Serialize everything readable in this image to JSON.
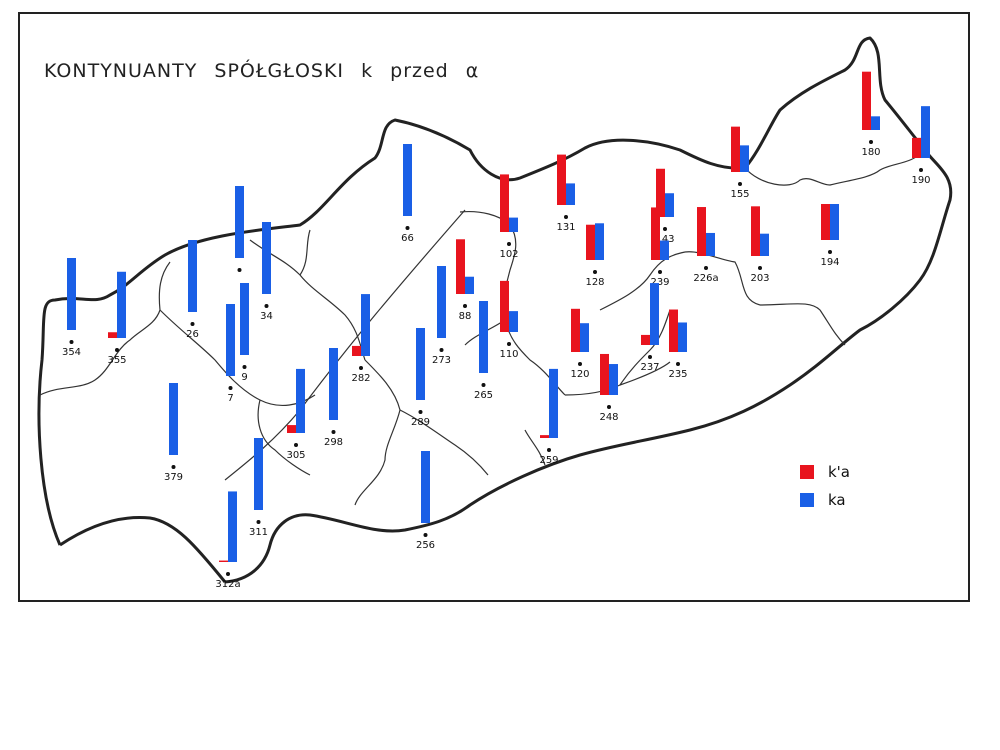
{
  "map": {
    "title": [
      "KONTYNUANTY",
      "SPÓŁGŁOSKI",
      "k",
      "przed",
      "α"
    ],
    "legend": [
      {
        "key": "palatal",
        "label": "k'a",
        "color": "#e8141e"
      },
      {
        "key": "velar",
        "label": "ka",
        "color": "#1a5fe6"
      }
    ],
    "colors": {
      "red": "#e8141e",
      "blue": "#1a5fe6",
      "outline": "#222222"
    }
  },
  "points": [
    {
      "label": "354",
      "red": 0,
      "blue": 100
    },
    {
      "label": "355",
      "red": 8,
      "blue": 92
    },
    {
      "label": "26",
      "red": 0,
      "blue": 100
    },
    {
      "label": "",
      "red": 0,
      "blue": 100
    },
    {
      "label": "34",
      "red": 0,
      "blue": 100
    },
    {
      "label": "9",
      "red": 0,
      "blue": 100
    },
    {
      "label": "7",
      "red": 0,
      "blue": 100
    },
    {
      "label": "66",
      "red": 0,
      "blue": 100
    },
    {
      "label": "282",
      "red": 14,
      "blue": 86
    },
    {
      "label": "273",
      "red": 0,
      "blue": 100
    },
    {
      "label": "88",
      "red": 76,
      "blue": 24
    },
    {
      "label": "102",
      "red": 80,
      "blue": 20
    },
    {
      "label": "131",
      "red": 70,
      "blue": 30
    },
    {
      "label": "110",
      "red": 71,
      "blue": 29
    },
    {
      "label": "265",
      "red": 0,
      "blue": 100
    },
    {
      "label": "128",
      "red": 49,
      "blue": 51
    },
    {
      "label": "143",
      "red": 67,
      "blue": 33
    },
    {
      "label": "239",
      "red": 73,
      "blue": 27
    },
    {
      "label": "155",
      "red": 63,
      "blue": 37
    },
    {
      "label": "226a",
      "red": 68,
      "blue": 32
    },
    {
      "label": "203",
      "red": 69,
      "blue": 31
    },
    {
      "label": "194",
      "red": 50,
      "blue": 50
    },
    {
      "label": "180",
      "red": 81,
      "blue": 19
    },
    {
      "label": "190",
      "red": 28,
      "blue": 72
    },
    {
      "label": "120",
      "red": 60,
      "blue": 40
    },
    {
      "label": "237",
      "red": 14,
      "blue": 86
    },
    {
      "label": "235",
      "red": 59,
      "blue": 41
    },
    {
      "label": "248",
      "red": 57,
      "blue": 43
    },
    {
      "label": "259",
      "red": 4,
      "blue": 96
    },
    {
      "label": "289",
      "red": 0,
      "blue": 100
    },
    {
      "label": "379",
      "red": 0,
      "blue": 100
    },
    {
      "label": "305",
      "red": 11,
      "blue": 89
    },
    {
      "label": "298",
      "red": 0,
      "blue": 100
    },
    {
      "label": "311",
      "red": 0,
      "blue": 100
    },
    {
      "label": "312a",
      "red": 2,
      "blue": 98
    },
    {
      "label": "256",
      "red": 0,
      "blue": 100
    }
  ]
}
